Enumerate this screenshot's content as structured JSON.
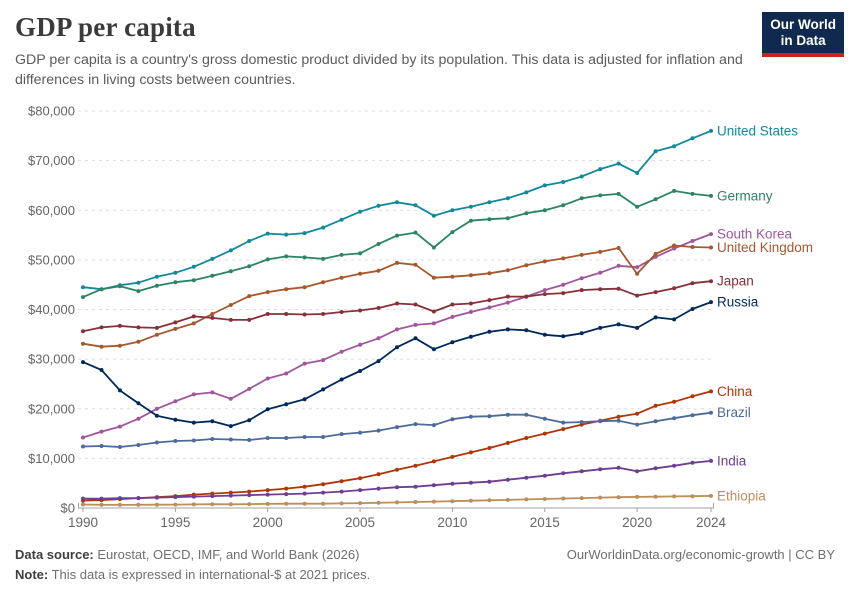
{
  "header": {
    "title": "GDP per capita",
    "subtitle": "GDP per capita is a country's gross domestic product divided by its population. This data is adjusted for inflation and differences in living costs between countries.",
    "logo": {
      "line1": "Our World",
      "line2": "in Data"
    }
  },
  "chart_data": {
    "type": "line",
    "title": "GDP per capita",
    "xlabel": "",
    "ylabel": "",
    "x": [
      1990,
      1991,
      1992,
      1993,
      1994,
      1995,
      1996,
      1997,
      1998,
      1999,
      2000,
      2001,
      2002,
      2003,
      2004,
      2005,
      2006,
      2007,
      2008,
      2009,
      2010,
      2011,
      2012,
      2013,
      2014,
      2015,
      2016,
      2017,
      2018,
      2019,
      2020,
      2021,
      2022,
      2023,
      2024
    ],
    "x_tick_labels": [
      "1990",
      "1995",
      "2000",
      "2005",
      "2010",
      "2015",
      "2020",
      "2024"
    ],
    "ylim": [
      0,
      80000
    ],
    "y_ticks": [
      0,
      10000,
      20000,
      30000,
      40000,
      50000,
      60000,
      70000,
      80000
    ],
    "y_tick_labels": [
      "$0",
      "$10,000",
      "$20,000",
      "$30,000",
      "$40,000",
      "$50,000",
      "$60,000",
      "$70,000",
      "$80,000"
    ],
    "grid": "horizontal-dashed",
    "legend_position": "right-end-labels",
    "marker": "point",
    "series": [
      {
        "name": "United States",
        "color": "#10899C",
        "values": [
          44500,
          44100,
          44900,
          45400,
          46600,
          47400,
          48600,
          50200,
          51900,
          53800,
          55300,
          55100,
          55400,
          56500,
          58100,
          59700,
          60900,
          61600,
          61000,
          58900,
          60000,
          60700,
          61600,
          62400,
          63600,
          65000,
          65700,
          66800,
          68300,
          69400,
          67500,
          71900,
          72900,
          74500,
          76000
        ]
      },
      {
        "name": "Germany",
        "color": "#2C8465",
        "values": [
          42500,
          44100,
          44700,
          43700,
          44800,
          45500,
          45900,
          46800,
          47700,
          48700,
          50100,
          50700,
          50500,
          50200,
          51000,
          51300,
          53200,
          54900,
          55500,
          52500,
          55600,
          57900,
          58200,
          58400,
          59400,
          60000,
          61000,
          62400,
          63000,
          63300,
          60700,
          62200,
          63900,
          63300,
          62900
        ]
      },
      {
        "name": "South Korea",
        "color": "#A2559C",
        "values": [
          14200,
          15400,
          16400,
          18000,
          20000,
          21500,
          22900,
          23300,
          22000,
          24000,
          26100,
          27100,
          29100,
          29800,
          31500,
          32900,
          34200,
          36000,
          36900,
          37200,
          38500,
          39500,
          40400,
          41400,
          42600,
          43900,
          45000,
          46300,
          47400,
          48800,
          48500,
          50600,
          52300,
          53800,
          55200
        ]
      },
      {
        "name": "United Kingdom",
        "color": "#A6572E",
        "values": [
          33100,
          32500,
          32700,
          33500,
          34900,
          36100,
          37200,
          39100,
          40900,
          42700,
          43500,
          44100,
          44500,
          45500,
          46400,
          47200,
          47800,
          49400,
          49000,
          46400,
          46600,
          46900,
          47300,
          47900,
          48900,
          49700,
          50300,
          51000,
          51600,
          52400,
          47200,
          51200,
          52900,
          52600,
          52500
        ]
      },
      {
        "name": "Japan",
        "color": "#883039",
        "values": [
          35600,
          36400,
          36700,
          36400,
          36300,
          37400,
          38600,
          38300,
          37900,
          37900,
          39100,
          39100,
          39000,
          39100,
          39500,
          39800,
          40300,
          41200,
          41000,
          39600,
          41000,
          41200,
          41900,
          42600,
          42600,
          43100,
          43300,
          43900,
          44100,
          44200,
          42800,
          43500,
          44300,
          45300,
          45700
        ]
      },
      {
        "name": "Russia",
        "color": "#00295B",
        "values": [
          29400,
          27800,
          23700,
          21100,
          18600,
          17800,
          17200,
          17500,
          16500,
          17700,
          19900,
          20900,
          21900,
          23900,
          25900,
          27600,
          29600,
          32400,
          34200,
          32000,
          33400,
          34500,
          35500,
          36000,
          35800,
          34900,
          34600,
          35200,
          36300,
          37000,
          36300,
          38400,
          38000,
          40100,
          41500
        ]
      },
      {
        "name": "China",
        "color": "#B13507",
        "values": [
          1500,
          1600,
          1800,
          2000,
          2200,
          2400,
          2700,
          2900,
          3100,
          3300,
          3600,
          3900,
          4300,
          4800,
          5400,
          6000,
          6800,
          7700,
          8500,
          9400,
          10300,
          11200,
          12100,
          13100,
          14100,
          15000,
          15900,
          16800,
          17600,
          18400,
          19000,
          20600,
          21400,
          22500,
          23500
        ]
      },
      {
        "name": "Brazil",
        "color": "#4C6A9C",
        "values": [
          12400,
          12500,
          12300,
          12700,
          13200,
          13500,
          13600,
          13900,
          13800,
          13700,
          14100,
          14100,
          14300,
          14300,
          14900,
          15200,
          15600,
          16300,
          16900,
          16700,
          17900,
          18400,
          18500,
          18800,
          18800,
          18000,
          17200,
          17300,
          17500,
          17600,
          16800,
          17500,
          18100,
          18700,
          19200
        ]
      },
      {
        "name": "India",
        "color": "#6D3E91",
        "values": [
          1900,
          1900,
          2000,
          2000,
          2100,
          2200,
          2300,
          2400,
          2500,
          2600,
          2700,
          2800,
          2900,
          3100,
          3300,
          3600,
          3900,
          4200,
          4300,
          4600,
          4900,
          5100,
          5300,
          5700,
          6100,
          6500,
          7000,
          7400,
          7800,
          8100,
          7400,
          8000,
          8500,
          9100,
          9500
        ]
      },
      {
        "name": "Ethiopia",
        "color": "#BC8E5A",
        "values": [
          700,
          650,
          620,
          640,
          660,
          690,
          730,
          760,
          740,
          780,
          820,
          870,
          860,
          870,
          920,
          980,
          1040,
          1120,
          1200,
          1290,
          1380,
          1470,
          1550,
          1640,
          1730,
          1820,
          1910,
          2000,
          2090,
          2180,
          2230,
          2280,
          2330,
          2380,
          2430
        ]
      }
    ]
  },
  "footer": {
    "source_label": "Data source:",
    "source_text": " Eurostat, OECD, IMF, and World Bank (2026)",
    "note_label": "Note:",
    "note_text": " This data is expressed in international-$ at 2021 prices.",
    "link": "OurWorldinData.org/economic-growth | CC BY"
  }
}
